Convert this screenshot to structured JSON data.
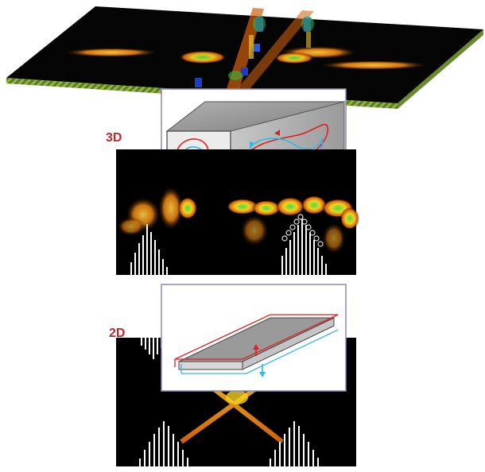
{
  "figure": {
    "labels": {
      "three_d": "3D",
      "two_d": "2D"
    },
    "colors": {
      "label": "#c0282c",
      "beam_orange": "#e07a10",
      "beam_yellow": "#f5d020",
      "beam_green": "#40c040",
      "beam_blue": "#2040d0",
      "loop_red": "#e02020",
      "loop_cyan": "#30b8e8",
      "substrate_stripe": "#8fb83a",
      "inset_border": "#8a88b8",
      "block_gray": "#9a9a9a",
      "panel_black": "#000000"
    },
    "panels": [
      "top-substrate-field-map",
      "3d-inset-box-waveguide",
      "3d-field-cross-section",
      "2d-inset-slab-waveguide",
      "2d-field-cross-section"
    ]
  }
}
